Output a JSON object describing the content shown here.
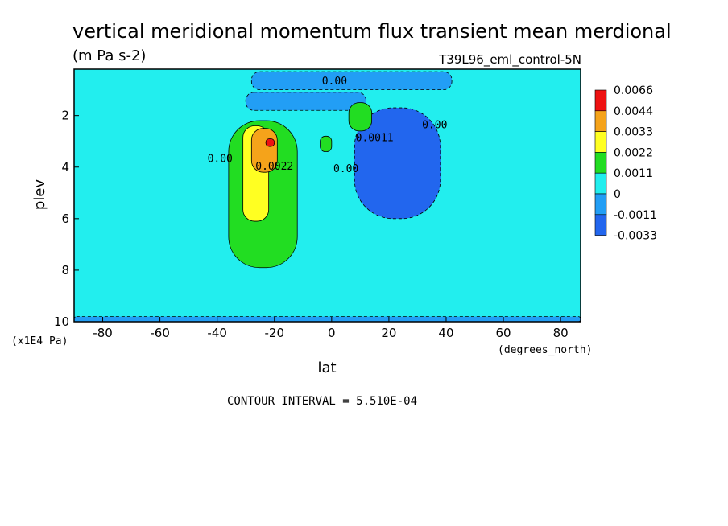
{
  "chart_data": {
    "type": "heatmap",
    "title": "vertical meridional momentum flux transient mean merdional",
    "units": "(m Pa s-2)",
    "subtitle": "T39L96_eml_control-5N",
    "xlabel": "lat",
    "ylabel": "plev",
    "x_unit_label": "(degrees_north)",
    "y_unit_label": "(x1E4 Pa)",
    "xlim": [
      -90,
      87
    ],
    "ylim": [
      0.2,
      10
    ],
    "y_inverted": true,
    "x_ticks": [
      -80,
      -60,
      -40,
      -20,
      0,
      20,
      40,
      60,
      80
    ],
    "x_tick_labels": [
      "-80",
      "-60",
      "-40",
      "-20",
      "0",
      "20",
      "40",
      "60",
      "80"
    ],
    "y_ticks": [
      2,
      4,
      6,
      8,
      10
    ],
    "y_tick_labels": [
      "2",
      "4",
      "6",
      "8",
      "10"
    ],
    "contour_interval_text": "CONTOUR INTERVAL = 5.510E-04",
    "colorbar": {
      "labels": [
        "0.0066",
        "0.0044",
        "0.0033",
        "0.0022",
        "0.0011",
        "0",
        "-0.0011",
        "-0.0033"
      ],
      "colors": [
        "#ee1111",
        "#f5a31a",
        "#ffff22",
        "#22dd22",
        "#22eeee",
        "#229ef5",
        "#2266ee"
      ]
    },
    "contour_labels": [
      {
        "text": "0.00",
        "lat": -39,
        "plev": 3.8
      },
      {
        "text": "0.00",
        "lat": 1,
        "plev": 0.8
      },
      {
        "text": "0.0022",
        "lat": -20,
        "plev": 4.1
      },
      {
        "text": "0.0011",
        "lat": 15,
        "plev": 3.0
      },
      {
        "text": "0.00",
        "lat": 36,
        "plev": 2.5
      },
      {
        "text": "0.00",
        "lat": 5,
        "plev": 4.2
      }
    ],
    "regions": [
      {
        "level": "neg_weak",
        "lat": [
          -90,
          87
        ],
        "plev": [
          9.8,
          10
        ],
        "note": "patchy weak negative near surface"
      },
      {
        "level": "neg_weak",
        "lat": [
          -28,
          42
        ],
        "plev": [
          0.3,
          1.0
        ],
        "note": "upper weak negative band"
      },
      {
        "level": "neg_weak",
        "lat": [
          -30,
          12
        ],
        "plev": [
          1.1,
          1.8
        ]
      },
      {
        "level": "neg_mid",
        "lat": [
          8,
          38
        ],
        "plev": [
          1.7,
          6.0
        ],
        "note": "main negative cell"
      },
      {
        "level": "pos_weak",
        "lat": [
          -36,
          -12
        ],
        "plev": [
          2.2,
          7.9
        ]
      },
      {
        "level": "pos_mid",
        "lat": [
          -31,
          -22
        ],
        "plev": [
          2.4,
          6.1
        ]
      },
      {
        "level": "pos_strong",
        "lat": [
          -28,
          -19
        ],
        "plev": [
          2.5,
          4.2
        ]
      },
      {
        "level": "pos_max",
        "lat": [
          -23,
          -20
        ],
        "plev": [
          2.9,
          3.2
        ]
      },
      {
        "level": "pos_weak",
        "lat": [
          6,
          14
        ],
        "plev": [
          1.5,
          2.6
        ]
      },
      {
        "level": "pos_weak",
        "lat": [
          -4,
          0
        ],
        "plev": [
          2.8,
          3.4
        ]
      }
    ]
  }
}
